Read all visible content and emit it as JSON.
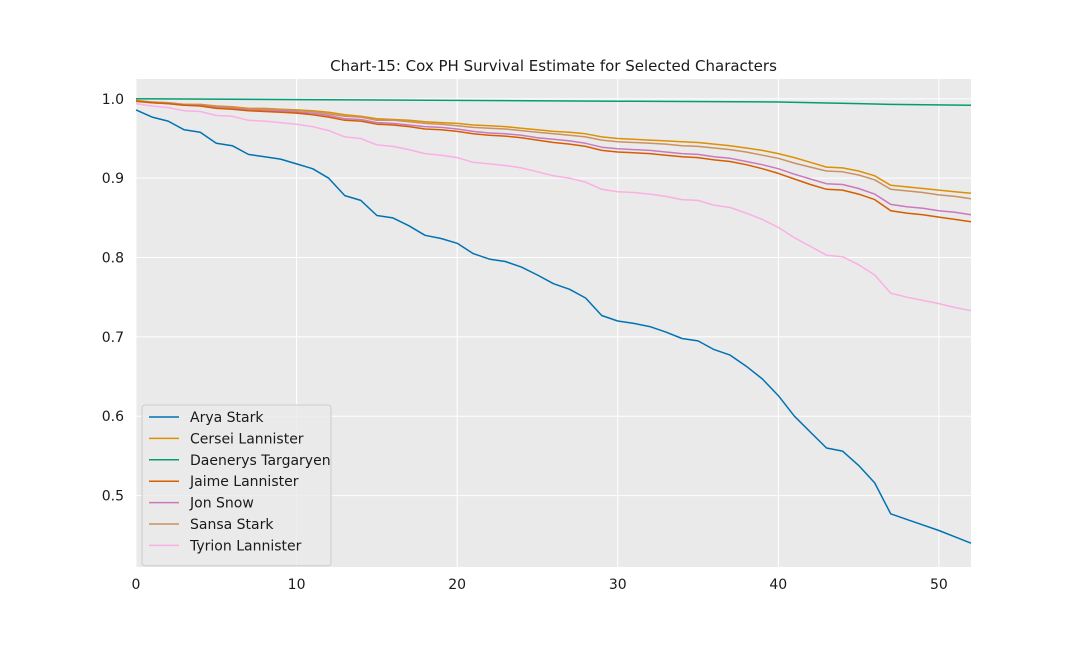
{
  "chart_data": {
    "type": "line",
    "title": "Chart-15: Cox PH Survival Estimate for Selected Characters",
    "xlabel": "",
    "ylabel": "",
    "xlim": [
      0,
      52
    ],
    "ylim": [
      0.41,
      1.025
    ],
    "xticks": [
      0,
      10,
      20,
      30,
      40,
      50
    ],
    "xtick_labels": [
      "0",
      "10",
      "20",
      "30",
      "40",
      "50"
    ],
    "yticks": [
      0.5,
      0.6,
      0.7,
      0.8,
      0.9,
      1.0
    ],
    "ytick_labels": [
      "0.5",
      "0.6",
      "0.7",
      "0.8",
      "0.9",
      "1.0"
    ],
    "grid": true,
    "legend_position": "lower-left",
    "background": "#eaeaea",
    "series": [
      {
        "name": "Arya Stark",
        "color": "#0072b2",
        "x": [
          0,
          1,
          2,
          3,
          4,
          5,
          6,
          7,
          8,
          9,
          10,
          11,
          12,
          13,
          14,
          15,
          16,
          17,
          18,
          19,
          20,
          21,
          22,
          23,
          24,
          25,
          26,
          27,
          28,
          29,
          30,
          31,
          32,
          33,
          34,
          35,
          36,
          37,
          38,
          39,
          40,
          41,
          42,
          43,
          44,
          45,
          46,
          47,
          48,
          49,
          50,
          51,
          52
        ],
        "y": [
          0.986,
          0.977,
          0.972,
          0.961,
          0.958,
          0.944,
          0.941,
          0.93,
          0.927,
          0.924,
          0.918,
          0.912,
          0.9,
          0.878,
          0.872,
          0.853,
          0.85,
          0.84,
          0.828,
          0.824,
          0.818,
          0.805,
          0.798,
          0.795,
          0.788,
          0.778,
          0.767,
          0.76,
          0.749,
          0.727,
          0.72,
          0.717,
          0.713,
          0.706,
          0.698,
          0.695,
          0.684,
          0.677,
          0.663,
          0.647,
          0.626,
          0.6,
          0.58,
          0.56,
          0.556,
          0.538,
          0.516,
          0.477,
          0.47,
          0.463,
          0.456,
          0.448,
          0.44
        ]
      },
      {
        "name": "Cersei Lannister",
        "color": "#de8f05",
        "x": [
          0,
          1,
          2,
          3,
          4,
          5,
          6,
          7,
          8,
          9,
          10,
          11,
          12,
          13,
          14,
          15,
          16,
          17,
          18,
          19,
          20,
          21,
          22,
          23,
          24,
          25,
          26,
          27,
          28,
          29,
          30,
          31,
          32,
          33,
          34,
          35,
          36,
          37,
          38,
          39,
          40,
          41,
          42,
          43,
          44,
          45,
          46,
          47,
          48,
          49,
          50,
          51,
          52
        ],
        "y": [
          0.998,
          0.996,
          0.995,
          0.993,
          0.993,
          0.991,
          0.99,
          0.988,
          0.988,
          0.987,
          0.986,
          0.985,
          0.983,
          0.98,
          0.978,
          0.975,
          0.974,
          0.973,
          0.971,
          0.97,
          0.969,
          0.967,
          0.966,
          0.965,
          0.963,
          0.961,
          0.959,
          0.958,
          0.956,
          0.952,
          0.95,
          0.949,
          0.948,
          0.947,
          0.946,
          0.945,
          0.943,
          0.941,
          0.938,
          0.935,
          0.931,
          0.926,
          0.92,
          0.914,
          0.913,
          0.909,
          0.903,
          0.891,
          0.889,
          0.887,
          0.885,
          0.883,
          0.881
        ]
      },
      {
        "name": "Daenerys Targaryen",
        "color": "#029e73",
        "x": [
          0,
          10,
          20,
          30,
          40,
          45,
          47,
          52
        ],
        "y": [
          1.0,
          0.999,
          0.998,
          0.997,
          0.996,
          0.994,
          0.993,
          0.992
        ]
      },
      {
        "name": "Jaime Lannister",
        "color": "#d55e00",
        "x": [
          0,
          1,
          2,
          3,
          4,
          5,
          6,
          7,
          8,
          9,
          10,
          11,
          12,
          13,
          14,
          15,
          16,
          17,
          18,
          19,
          20,
          21,
          22,
          23,
          24,
          25,
          26,
          27,
          28,
          29,
          30,
          31,
          32,
          33,
          34,
          35,
          36,
          37,
          38,
          39,
          40,
          41,
          42,
          43,
          44,
          45,
          46,
          47,
          48,
          49,
          50,
          51,
          52
        ],
        "y": [
          0.997,
          0.995,
          0.994,
          0.992,
          0.991,
          0.988,
          0.987,
          0.985,
          0.984,
          0.983,
          0.982,
          0.98,
          0.977,
          0.973,
          0.972,
          0.968,
          0.967,
          0.965,
          0.962,
          0.961,
          0.959,
          0.956,
          0.954,
          0.953,
          0.951,
          0.948,
          0.945,
          0.943,
          0.94,
          0.935,
          0.933,
          0.932,
          0.931,
          0.929,
          0.927,
          0.926,
          0.923,
          0.921,
          0.917,
          0.912,
          0.906,
          0.899,
          0.892,
          0.886,
          0.885,
          0.88,
          0.873,
          0.859,
          0.856,
          0.854,
          0.851,
          0.848,
          0.845
        ]
      },
      {
        "name": "Jon Snow",
        "color": "#cc78bc",
        "x": [
          0,
          1,
          2,
          3,
          4,
          5,
          6,
          7,
          8,
          9,
          10,
          11,
          12,
          13,
          14,
          15,
          16,
          17,
          18,
          19,
          20,
          21,
          22,
          23,
          24,
          25,
          26,
          27,
          28,
          29,
          30,
          31,
          32,
          33,
          34,
          35,
          36,
          37,
          38,
          39,
          40,
          41,
          42,
          43,
          44,
          45,
          46,
          47,
          48,
          49,
          50,
          51,
          52
        ],
        "y": [
          0.997,
          0.995,
          0.994,
          0.992,
          0.992,
          0.989,
          0.988,
          0.986,
          0.985,
          0.985,
          0.983,
          0.982,
          0.979,
          0.975,
          0.974,
          0.97,
          0.969,
          0.967,
          0.965,
          0.964,
          0.962,
          0.959,
          0.957,
          0.956,
          0.954,
          0.951,
          0.949,
          0.947,
          0.944,
          0.939,
          0.937,
          0.936,
          0.935,
          0.933,
          0.931,
          0.93,
          0.927,
          0.925,
          0.921,
          0.917,
          0.912,
          0.905,
          0.899,
          0.893,
          0.892,
          0.887,
          0.88,
          0.867,
          0.864,
          0.862,
          0.859,
          0.857,
          0.854
        ]
      },
      {
        "name": "Sansa Stark",
        "color": "#ca9161",
        "x": [
          0,
          1,
          2,
          3,
          4,
          5,
          6,
          7,
          8,
          9,
          10,
          11,
          12,
          13,
          14,
          15,
          16,
          17,
          18,
          19,
          20,
          21,
          22,
          23,
          24,
          25,
          26,
          27,
          28,
          29,
          30,
          31,
          32,
          33,
          34,
          35,
          36,
          37,
          38,
          39,
          40,
          41,
          42,
          43,
          44,
          45,
          46,
          47,
          48,
          49,
          50,
          51,
          52
        ],
        "y": [
          0.997,
          0.996,
          0.995,
          0.993,
          0.992,
          0.99,
          0.989,
          0.987,
          0.987,
          0.986,
          0.985,
          0.984,
          0.981,
          0.978,
          0.977,
          0.973,
          0.973,
          0.971,
          0.969,
          0.968,
          0.966,
          0.964,
          0.963,
          0.962,
          0.96,
          0.958,
          0.956,
          0.954,
          0.952,
          0.948,
          0.946,
          0.945,
          0.944,
          0.943,
          0.941,
          0.94,
          0.938,
          0.936,
          0.933,
          0.929,
          0.925,
          0.919,
          0.914,
          0.909,
          0.908,
          0.904,
          0.898,
          0.886,
          0.884,
          0.882,
          0.879,
          0.877,
          0.874
        ]
      },
      {
        "name": "Tyrion Lannister",
        "color": "#fbafe4",
        "x": [
          0,
          1,
          2,
          3,
          4,
          5,
          6,
          7,
          8,
          9,
          10,
          11,
          12,
          13,
          14,
          15,
          16,
          17,
          18,
          19,
          20,
          21,
          22,
          23,
          24,
          25,
          26,
          27,
          28,
          29,
          30,
          31,
          32,
          33,
          34,
          35,
          36,
          37,
          38,
          39,
          40,
          41,
          42,
          43,
          44,
          45,
          46,
          47,
          48,
          49,
          50,
          51,
          52
        ],
        "y": [
          0.994,
          0.991,
          0.989,
          0.985,
          0.984,
          0.979,
          0.978,
          0.973,
          0.972,
          0.97,
          0.968,
          0.965,
          0.96,
          0.952,
          0.95,
          0.942,
          0.94,
          0.936,
          0.931,
          0.929,
          0.926,
          0.92,
          0.918,
          0.916,
          0.913,
          0.908,
          0.903,
          0.9,
          0.895,
          0.886,
          0.883,
          0.882,
          0.88,
          0.877,
          0.873,
          0.872,
          0.866,
          0.863,
          0.856,
          0.848,
          0.838,
          0.825,
          0.814,
          0.803,
          0.801,
          0.791,
          0.778,
          0.755,
          0.75,
          0.746,
          0.742,
          0.737,
          0.733
        ]
      }
    ]
  }
}
